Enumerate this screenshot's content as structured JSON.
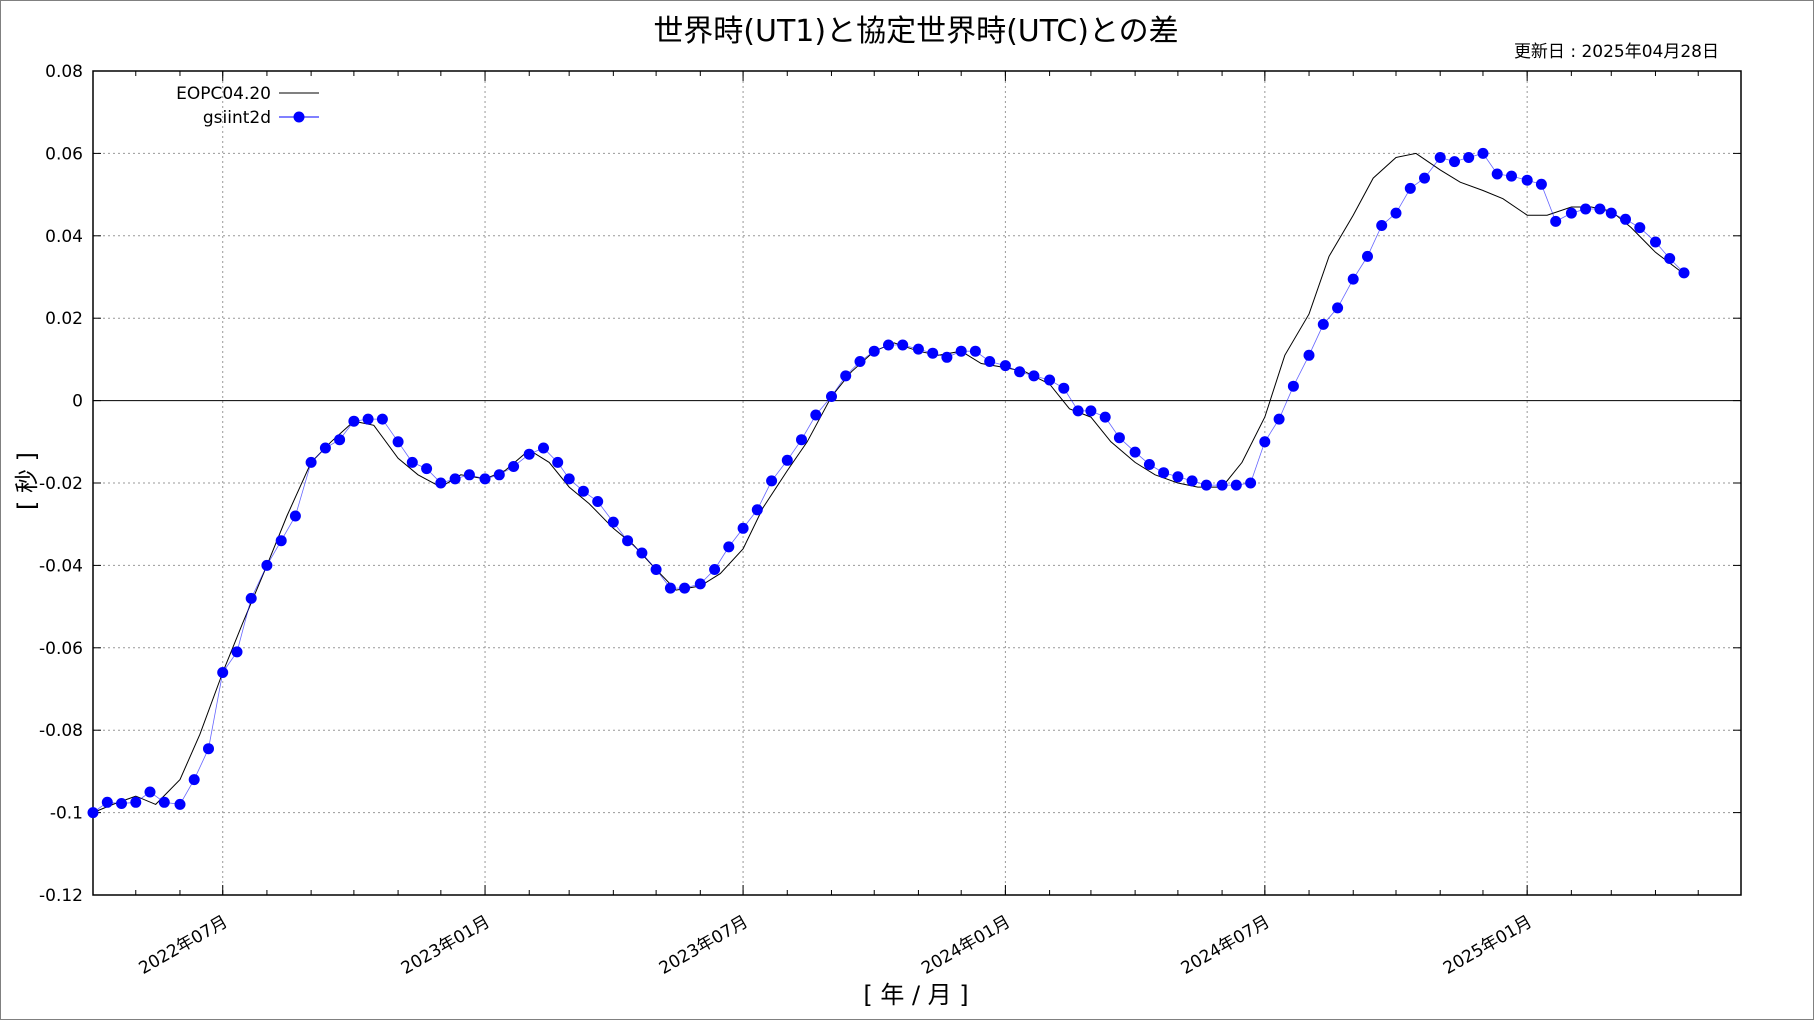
{
  "chart_data": {
    "type": "line",
    "title": "世界時(UT1)と協定世界時(UTC)との差",
    "updated": "更新日 : 2025年04月28日",
    "xlabel": "[ 年 / 月 ]",
    "ylabel": "[ 秒 ]",
    "ylim": [
      -0.12,
      0.08
    ],
    "xlim": [
      "2022-04-01",
      "2025-05-31"
    ],
    "yticks": [
      -0.12,
      -0.1,
      -0.08,
      -0.06,
      -0.04,
      -0.02,
      0,
      0.02,
      0.04,
      0.06,
      0.08
    ],
    "ytick_labels": [
      "-0.12",
      "-0.1",
      "-0.08",
      "-0.06",
      "-0.04",
      "-0.02",
      "0",
      "0.02",
      "0.04",
      "0.06",
      "0.08"
    ],
    "xticks": [
      "2022-07-01",
      "2023-01-01",
      "2023-07-01",
      "2024-01-01",
      "2024-07-01",
      "2025-01-01"
    ],
    "xtick_labels": [
      "2022年07月",
      "2023年01月",
      "2023年07月",
      "2024年01月",
      "2024年07月",
      "2025年01月"
    ],
    "grid": true,
    "legend_position": "top-left",
    "colors": {
      "line": "#000000",
      "points": "#0000ff",
      "zero_line": "#000000",
      "grid": "#999999"
    },
    "series": [
      {
        "name": "EOPC04.20",
        "style": "line",
        "x": [
          "2022-04-01",
          "2022-04-15",
          "2022-05-01",
          "2022-05-15",
          "2022-06-01",
          "2022-06-15",
          "2022-07-01",
          "2022-07-15",
          "2022-08-01",
          "2022-08-15",
          "2022-09-01",
          "2022-09-15",
          "2022-10-01",
          "2022-10-15",
          "2022-11-01",
          "2022-11-15",
          "2022-12-01",
          "2022-12-15",
          "2023-01-01",
          "2023-01-15",
          "2023-02-01",
          "2023-02-15",
          "2023-03-01",
          "2023-03-15",
          "2023-04-01",
          "2023-04-15",
          "2023-05-01",
          "2023-05-15",
          "2023-06-01",
          "2023-06-15",
          "2023-07-01",
          "2023-07-15",
          "2023-08-01",
          "2023-08-15",
          "2023-09-01",
          "2023-09-15",
          "2023-10-01",
          "2023-10-15",
          "2023-11-01",
          "2023-11-15",
          "2023-12-01",
          "2023-12-15",
          "2024-01-01",
          "2024-01-15",
          "2024-02-01",
          "2024-02-15",
          "2024-03-01",
          "2024-03-15",
          "2024-04-01",
          "2024-04-15",
          "2024-05-01",
          "2024-05-15",
          "2024-06-01",
          "2024-06-15",
          "2024-07-01",
          "2024-07-15",
          "2024-08-01",
          "2024-08-15",
          "2024-09-01",
          "2024-09-15",
          "2024-10-01",
          "2024-10-15",
          "2024-11-01",
          "2024-11-15",
          "2024-12-01",
          "2024-12-15",
          "2025-01-01",
          "2025-01-15",
          "2025-02-01",
          "2025-02-15",
          "2025-03-01",
          "2025-03-15",
          "2025-04-01",
          "2025-04-20"
        ],
        "y": [
          -0.1,
          -0.098,
          -0.096,
          -0.098,
          -0.092,
          -0.081,
          -0.066,
          -0.054,
          -0.04,
          -0.028,
          -0.015,
          -0.01,
          -0.005,
          -0.006,
          -0.014,
          -0.018,
          -0.021,
          -0.018,
          -0.019,
          -0.017,
          -0.012,
          -0.015,
          -0.021,
          -0.025,
          -0.031,
          -0.035,
          -0.041,
          -0.046,
          -0.045,
          -0.042,
          -0.036,
          -0.026,
          -0.017,
          -0.01,
          0.001,
          0.007,
          0.012,
          0.014,
          0.012,
          0.011,
          0.012,
          0.009,
          0.008,
          0.007,
          0.004,
          -0.002,
          -0.004,
          -0.01,
          -0.015,
          -0.018,
          -0.02,
          -0.021,
          -0.021,
          -0.015,
          -0.004,
          0.011,
          0.021,
          0.035,
          0.045,
          0.054,
          0.059,
          0.06,
          0.056,
          0.053,
          0.051,
          0.049,
          0.045,
          0.045,
          0.047,
          0.047,
          0.046,
          0.042,
          0.036,
          0.031
        ]
      },
      {
        "name": "gsiint2d",
        "style": "points",
        "x": [
          "2022-04-01",
          "2022-04-11",
          "2022-04-21",
          "2022-05-01",
          "2022-05-11",
          "2022-05-21",
          "2022-06-01",
          "2022-06-11",
          "2022-06-21",
          "2022-07-01",
          "2022-07-11",
          "2022-07-21",
          "2022-08-01",
          "2022-08-11",
          "2022-08-21",
          "2022-09-01",
          "2022-09-11",
          "2022-09-21",
          "2022-10-01",
          "2022-10-11",
          "2022-10-21",
          "2022-11-01",
          "2022-11-11",
          "2022-11-21",
          "2022-12-01",
          "2022-12-11",
          "2022-12-21",
          "2023-01-01",
          "2023-01-11",
          "2023-01-21",
          "2023-02-01",
          "2023-02-11",
          "2023-02-21",
          "2023-03-01",
          "2023-03-11",
          "2023-03-21",
          "2023-04-01",
          "2023-04-11",
          "2023-04-21",
          "2023-05-01",
          "2023-05-11",
          "2023-05-21",
          "2023-06-01",
          "2023-06-11",
          "2023-06-21",
          "2023-07-01",
          "2023-07-11",
          "2023-07-21",
          "2023-08-01",
          "2023-08-11",
          "2023-08-21",
          "2023-09-01",
          "2023-09-11",
          "2023-09-21",
          "2023-10-01",
          "2023-10-11",
          "2023-10-21",
          "2023-11-01",
          "2023-11-11",
          "2023-11-21",
          "2023-12-01",
          "2023-12-11",
          "2023-12-21",
          "2024-01-01",
          "2024-01-11",
          "2024-01-21",
          "2024-02-01",
          "2024-02-11",
          "2024-02-21",
          "2024-03-01",
          "2024-03-11",
          "2024-03-21",
          "2024-04-01",
          "2024-04-11",
          "2024-04-21",
          "2024-05-01",
          "2024-05-11",
          "2024-05-21",
          "2024-06-01",
          "2024-06-11",
          "2024-06-21",
          "2024-07-01",
          "2024-07-11",
          "2024-07-21",
          "2024-08-01",
          "2024-08-11",
          "2024-08-21",
          "2024-09-01",
          "2024-09-11",
          "2024-09-21",
          "2024-10-01",
          "2024-10-11",
          "2024-10-21",
          "2024-11-01",
          "2024-11-11",
          "2024-11-21",
          "2024-12-01",
          "2024-12-11",
          "2024-12-21",
          "2025-01-01",
          "2025-01-11",
          "2025-01-21",
          "2025-02-01",
          "2025-02-11",
          "2025-02-21",
          "2025-03-01",
          "2025-03-11",
          "2025-03-21",
          "2025-04-01",
          "2025-04-11",
          "2025-04-21"
        ],
        "y": [
          -0.1,
          -0.0975,
          -0.0978,
          -0.0975,
          -0.095,
          -0.0975,
          -0.098,
          -0.092,
          -0.0845,
          -0.066,
          -0.061,
          -0.048,
          -0.04,
          -0.034,
          -0.028,
          -0.015,
          -0.0115,
          -0.0095,
          -0.005,
          -0.0045,
          -0.0045,
          -0.01,
          -0.015,
          -0.0165,
          -0.02,
          -0.019,
          -0.018,
          -0.019,
          -0.018,
          -0.016,
          -0.013,
          -0.0115,
          -0.015,
          -0.019,
          -0.022,
          -0.0245,
          -0.0295,
          -0.034,
          -0.037,
          -0.041,
          -0.0455,
          -0.0455,
          -0.0445,
          -0.041,
          -0.0355,
          -0.031,
          -0.0265,
          -0.0195,
          -0.0145,
          -0.0095,
          -0.0035,
          0.001,
          0.006,
          0.0095,
          0.012,
          0.0135,
          0.0135,
          0.0125,
          0.0115,
          0.0105,
          0.012,
          0.012,
          0.0095,
          0.0085,
          0.007,
          0.006,
          0.005,
          0.003,
          -0.0025,
          -0.0025,
          -0.004,
          -0.009,
          -0.0125,
          -0.0155,
          -0.0175,
          -0.0185,
          -0.0195,
          -0.0205,
          -0.0205,
          -0.0205,
          -0.02,
          -0.01,
          -0.0045,
          0.0035,
          0.011,
          0.0185,
          0.0225,
          0.0295,
          0.035,
          0.0425,
          0.0455,
          0.0515,
          0.054,
          0.059,
          0.058,
          0.059,
          0.06,
          0.055,
          0.0545,
          0.0535,
          0.0525,
          0.0515,
          0.0505,
          0.0485,
          0.0455,
          0.0455,
          0.0435,
          0.0445,
          0.0455,
          0.0465,
          0.0465
        ],
        "note_ext": {
          "x": [
            "2025-01-21",
            "2025-02-01",
            "2025-02-11",
            "2025-02-21",
            "2025-03-01",
            "2025-03-11",
            "2025-03-21",
            "2025-04-01",
            "2025-04-11",
            "2025-04-21"
          ],
          "y": [
            0.0435,
            0.0455,
            0.0465,
            0.0465,
            0.0455,
            0.044,
            0.042,
            0.0385,
            0.0345,
            0.031
          ]
        }
      }
    ]
  }
}
